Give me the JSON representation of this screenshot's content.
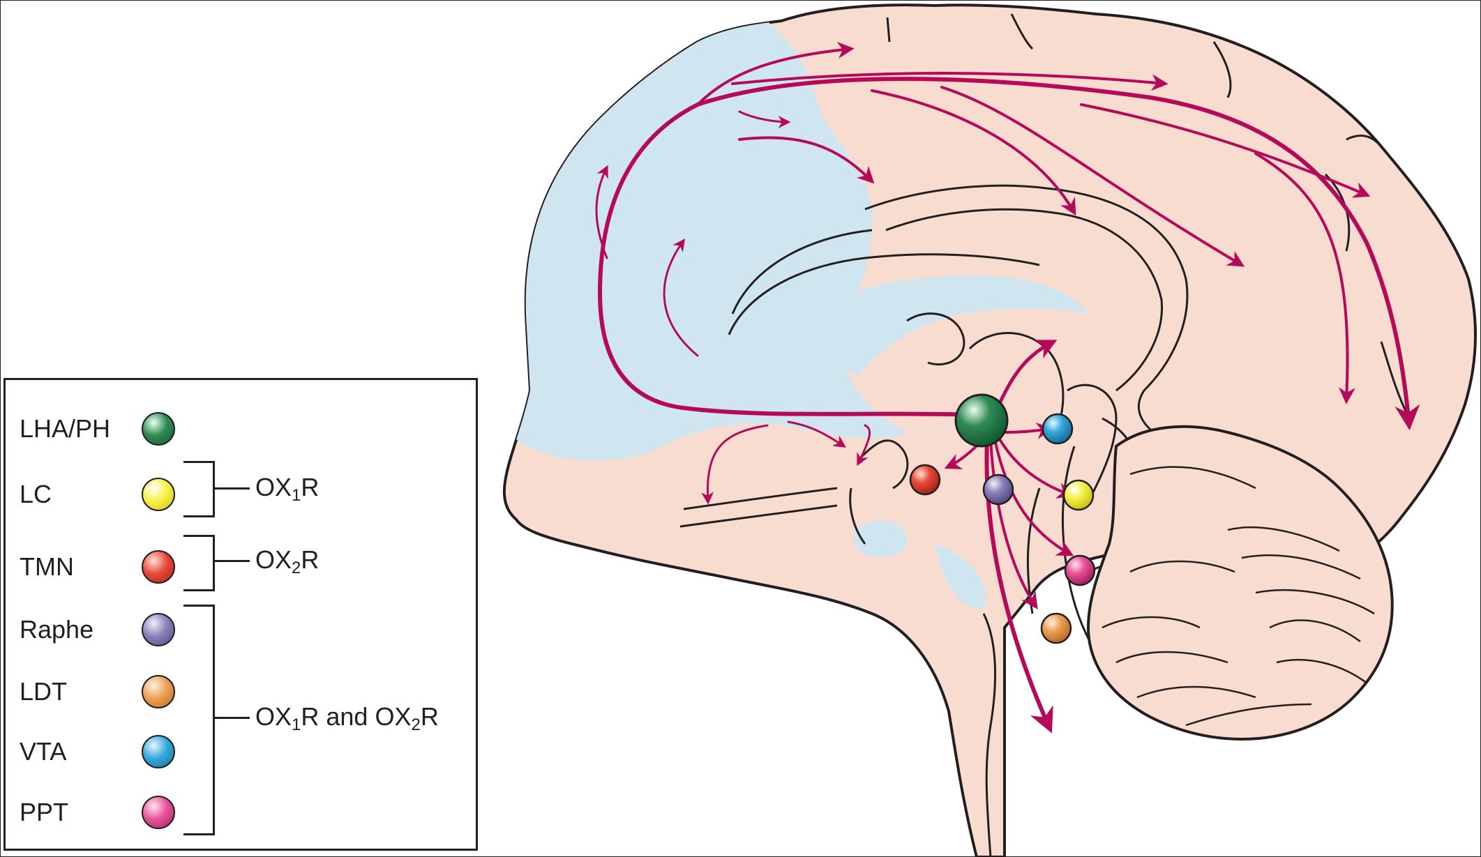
{
  "legend": {
    "items": [
      {
        "label": "LHA/PH",
        "color": "#2f8a55",
        "icon": "green-sphere"
      },
      {
        "label": "LC",
        "color": "#f7f24a",
        "icon": "yellow-sphere"
      },
      {
        "label": "TMN",
        "color": "#e8493a",
        "icon": "red-sphere"
      },
      {
        "label": "Raphe",
        "color": "#8a80b8",
        "icon": "purple-sphere"
      },
      {
        "label": "LDT",
        "color": "#ee9f55",
        "icon": "orange-sphere"
      },
      {
        "label": "VTA",
        "color": "#36a8dd",
        "icon": "blue-sphere"
      },
      {
        "label": "PPT",
        "color": "#e8529a",
        "icon": "pink-sphere"
      }
    ],
    "receptors": {
      "ox1": {
        "prefix": "OX",
        "sub": "1",
        "suffix": "R"
      },
      "ox2": {
        "prefix": "OX",
        "sub": "2",
        "suffix": "R"
      },
      "both": {
        "p1": "OX",
        "s1": "1",
        "m": "R and OX",
        "s2": "2",
        "e": "R"
      }
    }
  },
  "colors": {
    "projection": "#b5095a",
    "tissue": "#f8dccf",
    "cortex_highlight": "#cfe6f1",
    "outline": "#231f20"
  }
}
